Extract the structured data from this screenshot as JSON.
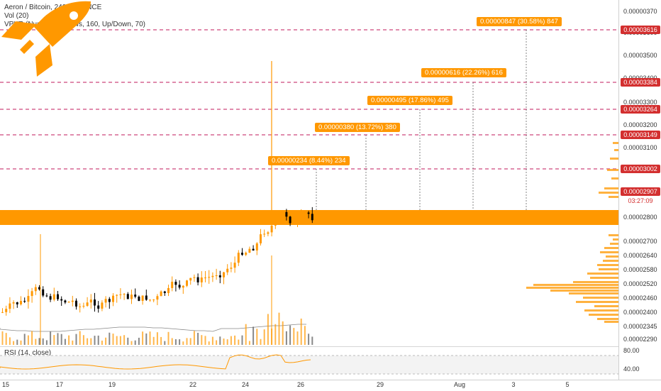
{
  "header": {
    "symbol_line": "Aeron / Bitcoin, 240, BINANCE",
    "vol_line": "Vol (20)",
    "vpvr_line": "VPVR (Number Of Rows, 160, Up/Down, 70)"
  },
  "rsi": {
    "label": "RSI (14, close)",
    "ticks": [
      "80.00",
      "40.00"
    ]
  },
  "price_axis": {
    "ticks": [
      "0.00000370",
      "0.00003600",
      "0.00003500",
      "0.00003400",
      "0.00003300",
      "0.00003200",
      "0.00003100",
      "0.00002800",
      "0.00002700",
      "0.00002640",
      "0.00002580",
      "0.00002520",
      "0.00002460",
      "0.00002400",
      "0.00002345",
      "0.00002290"
    ],
    "red_labels": [
      "0.00003616",
      "0.00003384",
      "0.00003264",
      "0.00003149",
      "0.00003002",
      "0.00002907"
    ],
    "countdown": "03:27:09"
  },
  "time_axis": {
    "ticks": [
      "15",
      "17",
      "19",
      "22",
      "24",
      "26",
      "29",
      "Aug",
      "3",
      "5"
    ]
  },
  "callouts": [
    "0.00000234 (8.44%) 234",
    "0.00000380 (13.72%) 380",
    "0.00000495 (17.86%) 495",
    "0.00000616 (22.26%) 616",
    "0.00000847 (30.58%) 847"
  ],
  "colors": {
    "accent": "#ff9800",
    "bear": "#000000",
    "target_line": "#c2185b",
    "price_label": "#d32f2f"
  },
  "icons": {
    "rocket": "rocket-icon"
  }
}
